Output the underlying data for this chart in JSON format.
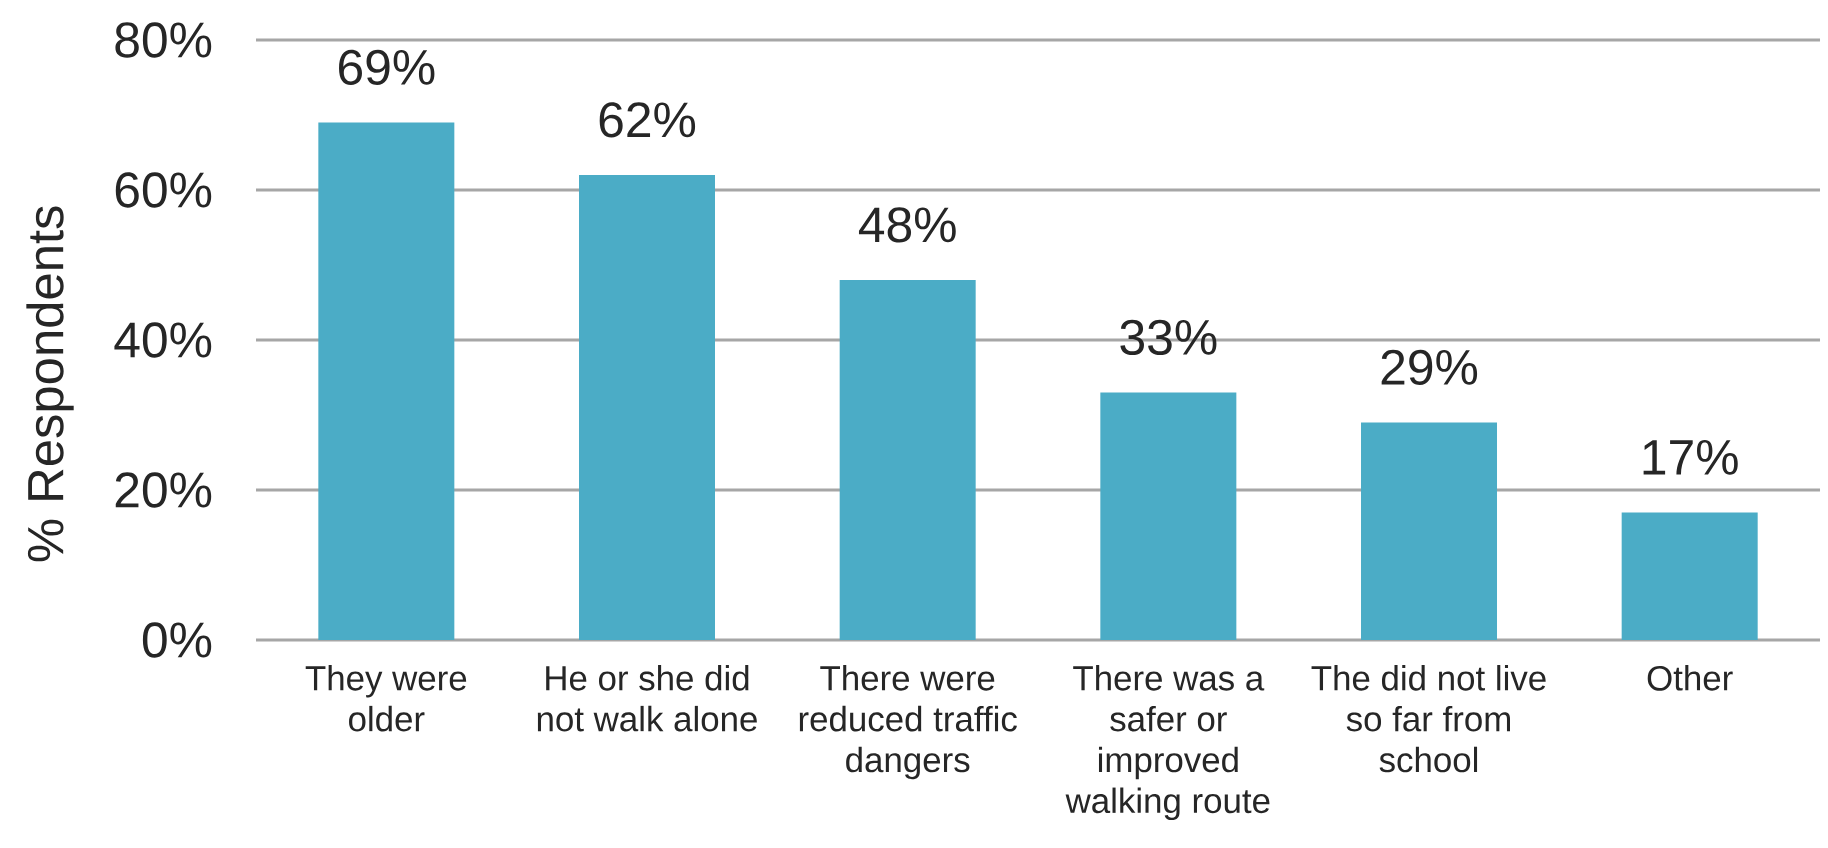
{
  "chart_data": {
    "type": "bar",
    "ylabel": "% Respondents",
    "categories": [
      "They were older",
      "He or she did not walk alone",
      "There were reduced traffic dangers",
      "There was a safer or improved walking route",
      "The did not live so far from school",
      "Other"
    ],
    "values": [
      69,
      62,
      48,
      33,
      29,
      17
    ],
    "value_labels": [
      "69%",
      "62%",
      "48%",
      "33%",
      "29%",
      "17%"
    ],
    "color": "#4bacc6",
    "ylim": [
      0,
      80
    ],
    "yticks": [
      {
        "value": 0,
        "label": "0%"
      },
      {
        "value": 20,
        "label": "20%"
      },
      {
        "value": 40,
        "label": "40%"
      },
      {
        "value": 60,
        "label": "60%"
      },
      {
        "value": 80,
        "label": "80%"
      }
    ],
    "grid": "y"
  }
}
